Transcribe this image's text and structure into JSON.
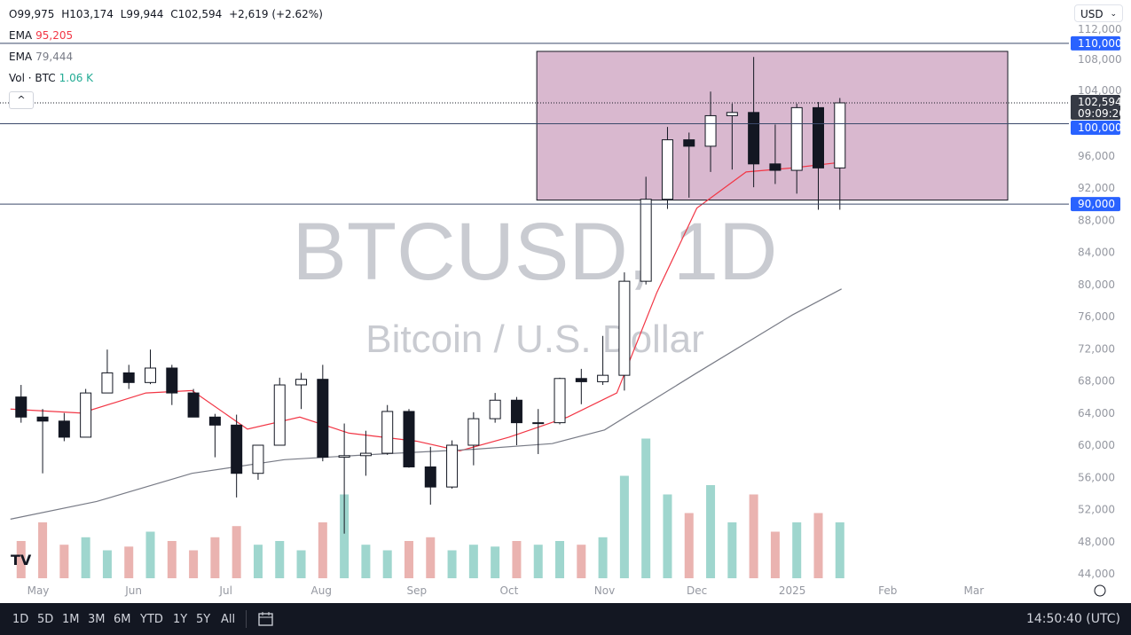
{
  "legend": {
    "ohlc": {
      "open": "O99,975",
      "high": "H103,174",
      "low": "L99,944",
      "close": "C102,594",
      "change": "+2,619 (+2.62%)"
    },
    "ema1": {
      "label": "EMA",
      "value": "95,205",
      "color": "#f23645"
    },
    "ema2": {
      "label": "EMA",
      "value": "79,444",
      "color": "#787b86"
    },
    "volume": {
      "label": "Vol · BTC",
      "value": "1.06 K",
      "color": "#22ab94"
    },
    "collapse_label": "^"
  },
  "currency": {
    "selected": "USD",
    "chevron": "⌄"
  },
  "watermark": {
    "symbol": "BTCUSD, 1D",
    "description": "Bitcoin / U.S. Dollar"
  },
  "price_axis": {
    "ticks": [
      "112,000",
      "108,000",
      "104,000",
      "100,000",
      "96,000",
      "92,000",
      "88,000",
      "84,000",
      "80,000",
      "76,000",
      "72,000",
      "68,000",
      "64,000",
      "60,000",
      "56,000",
      "52,000",
      "48,000",
      "44,000"
    ],
    "current_price": "102,594",
    "countdown": "09:09:20",
    "levels": [
      "110,000",
      "100,000",
      "90,000"
    ],
    "level_color": "#2962ff"
  },
  "time_axis": {
    "ticks": [
      {
        "label": "May",
        "date": "2024-05-01"
      },
      {
        "label": "Jun",
        "date": "2024-06-01"
      },
      {
        "label": "Jul",
        "date": "2024-07-01"
      },
      {
        "label": "Aug",
        "date": "2024-08-01"
      },
      {
        "label": "Sep",
        "date": "2024-09-01"
      },
      {
        "label": "Oct",
        "date": "2024-10-01"
      },
      {
        "label": "Nov",
        "date": "2024-11-01"
      },
      {
        "label": "Dec",
        "date": "2024-12-01"
      },
      {
        "label": "2025",
        "date": "2025-01-01"
      },
      {
        "label": "Feb",
        "date": "2025-02-01"
      },
      {
        "label": "Mar",
        "date": "2025-03-01"
      }
    ]
  },
  "chart_data": {
    "type": "candlestick",
    "title": "BTCUSD, 1D",
    "ylim": [
      44000,
      112000
    ],
    "grid": false,
    "candles_weekly_approx": [
      [
        "2024-04-22",
        66000,
        67500,
        62800,
        63500
      ],
      [
        "2024-04-29",
        63500,
        64500,
        56500,
        63000
      ],
      [
        "2024-05-06",
        63000,
        64000,
        60500,
        61000
      ],
      [
        "2024-05-13",
        61000,
        67000,
        61000,
        66500
      ],
      [
        "2024-05-20",
        66500,
        71900,
        66500,
        69000
      ],
      [
        "2024-05-27",
        69000,
        70000,
        67000,
        67800
      ],
      [
        "2024-06-03",
        67800,
        71900,
        67600,
        69600
      ],
      [
        "2024-06-10",
        69600,
        70000,
        65000,
        66500
      ],
      [
        "2024-06-17",
        66500,
        67000,
        63500,
        63500
      ],
      [
        "2024-06-24",
        63500,
        63900,
        58500,
        62500
      ],
      [
        "2024-07-01",
        62500,
        63800,
        53500,
        56500
      ],
      [
        "2024-07-08",
        56500,
        60000,
        55700,
        60000
      ],
      [
        "2024-07-15",
        60000,
        68400,
        60000,
        67500
      ],
      [
        "2024-07-22",
        67500,
        69000,
        64500,
        68200
      ],
      [
        "2024-07-29",
        68200,
        70000,
        58000,
        58500
      ],
      [
        "2024-08-05",
        58500,
        62700,
        49000,
        58700
      ],
      [
        "2024-08-12",
        58700,
        61800,
        56200,
        59000
      ],
      [
        "2024-08-19",
        59000,
        65000,
        58800,
        64200
      ],
      [
        "2024-08-26",
        64200,
        64500,
        57200,
        57300
      ],
      [
        "2024-09-02",
        57300,
        59800,
        52600,
        54800
      ],
      [
        "2024-09-09",
        54800,
        60600,
        54600,
        60000
      ],
      [
        "2024-09-16",
        60000,
        64100,
        57500,
        63300
      ],
      [
        "2024-09-23",
        63300,
        66500,
        62800,
        65600
      ],
      [
        "2024-09-30",
        65600,
        66000,
        60000,
        62800
      ],
      [
        "2024-10-07",
        62800,
        64500,
        58900,
        62800
      ],
      [
        "2024-10-14",
        62800,
        68400,
        62600,
        68300
      ],
      [
        "2024-10-21",
        68300,
        69500,
        65100,
        67900
      ],
      [
        "2024-10-28",
        67900,
        73600,
        67500,
        68700
      ],
      [
        "2024-11-04",
        68700,
        81500,
        66800,
        80400
      ],
      [
        "2024-11-11",
        80400,
        93400,
        80000,
        90600
      ],
      [
        "2024-11-18",
        90600,
        99600,
        89400,
        98000
      ],
      [
        "2024-11-25",
        98000,
        98900,
        90800,
        97200
      ],
      [
        "2024-12-02",
        97200,
        104000,
        94000,
        101000
      ],
      [
        "2024-12-09",
        101000,
        102500,
        94300,
        101400
      ],
      [
        "2024-12-16",
        101400,
        108300,
        92100,
        95000
      ],
      [
        "2024-12-23",
        95000,
        99900,
        92500,
        94200
      ],
      [
        "2024-12-30",
        94200,
        102500,
        91300,
        102000
      ],
      [
        "2025-01-06",
        102000,
        102700,
        89300,
        94500
      ],
      [
        "2025-01-13",
        94500,
        103200,
        89300,
        102594
      ]
    ],
    "volume_relative": [
      20,
      30,
      18,
      22,
      15,
      17,
      25,
      20,
      15,
      22,
      28,
      18,
      20,
      15,
      30,
      45,
      18,
      15,
      20,
      22,
      15,
      18,
      17,
      20,
      18,
      20,
      18,
      22,
      55,
      75,
      45,
      35,
      50,
      30,
      45,
      25,
      30,
      35,
      30
    ],
    "ema_short": {
      "color": "#f23645",
      "points": [
        [
          "2024-04-22",
          64500
        ],
        [
          "2024-05-15",
          64000
        ],
        [
          "2024-06-05",
          66500
        ],
        [
          "2024-06-20",
          66800
        ],
        [
          "2024-07-08",
          62000
        ],
        [
          "2024-07-25",
          63500
        ],
        [
          "2024-08-10",
          61500
        ],
        [
          "2024-09-01",
          60500
        ],
        [
          "2024-09-15",
          59300
        ],
        [
          "2024-10-01",
          61000
        ],
        [
          "2024-10-20",
          63500
        ],
        [
          "2024-11-05",
          66500
        ],
        [
          "2024-11-18",
          79000
        ],
        [
          "2024-12-01",
          89500
        ],
        [
          "2024-12-17",
          94000
        ],
        [
          "2025-01-01",
          94500
        ],
        [
          "2025-01-17",
          95205
        ]
      ]
    },
    "ema_long": {
      "color": "#787b86",
      "points": [
        [
          "2024-04-22",
          50800
        ],
        [
          "2024-05-20",
          53000
        ],
        [
          "2024-06-20",
          56500
        ],
        [
          "2024-07-20",
          58200
        ],
        [
          "2024-08-20",
          58900
        ],
        [
          "2024-09-20",
          59500
        ],
        [
          "2024-10-15",
          60200
        ],
        [
          "2024-11-01",
          61900
        ],
        [
          "2024-12-01",
          69000
        ],
        [
          "2025-01-01",
          76200
        ],
        [
          "2025-01-17",
          79444
        ]
      ]
    },
    "range_box": {
      "start": "2024-10-10",
      "end": "2025-03-12",
      "top": 109000,
      "bottom": 90500,
      "fill": "#d9b8cf"
    }
  },
  "bottom_bar": {
    "ranges": [
      "1D",
      "5D",
      "1M",
      "3M",
      "6M",
      "YTD",
      "1Y",
      "5Y",
      "All"
    ],
    "clock": "14:50:40 (UTC)"
  }
}
